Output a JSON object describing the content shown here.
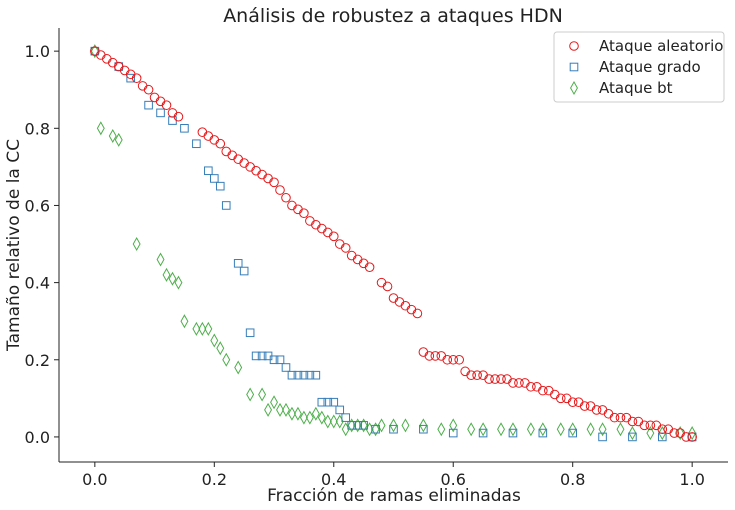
{
  "chart_data": {
    "type": "scatter",
    "title": "Análisis de robustez a ataques HDN",
    "xlabel": "Fracción de ramas eliminadas",
    "ylabel": "Tamaño relativo de la CC",
    "xlim": [
      -0.06,
      1.06
    ],
    "ylim": [
      -0.065,
      1.06
    ],
    "xticks": [
      0.0,
      0.2,
      0.4,
      0.6,
      0.8,
      1.0
    ],
    "xtick_labels": [
      "0.0",
      "0.2",
      "0.4",
      "0.6",
      "0.8",
      "1.0"
    ],
    "yticks": [
      0.0,
      0.2,
      0.4,
      0.6,
      0.8,
      1.0
    ],
    "ytick_labels": [
      "0.0",
      "0.2",
      "0.4",
      "0.6",
      "0.8",
      "1.0"
    ],
    "grid": false,
    "legend_position": "top-right",
    "series": [
      {
        "name": "Ataque aleatorio",
        "marker": "circle",
        "color": "#e41a1c",
        "points": [
          [
            0.0,
            1.0
          ],
          [
            0.01,
            0.99
          ],
          [
            0.02,
            0.98
          ],
          [
            0.03,
            0.97
          ],
          [
            0.04,
            0.96
          ],
          [
            0.05,
            0.95
          ],
          [
            0.06,
            0.94
          ],
          [
            0.07,
            0.93
          ],
          [
            0.08,
            0.91
          ],
          [
            0.09,
            0.9
          ],
          [
            0.1,
            0.88
          ],
          [
            0.11,
            0.87
          ],
          [
            0.12,
            0.86
          ],
          [
            0.13,
            0.84
          ],
          [
            0.14,
            0.83
          ],
          [
            0.18,
            0.79
          ],
          [
            0.19,
            0.78
          ],
          [
            0.2,
            0.77
          ],
          [
            0.21,
            0.76
          ],
          [
            0.22,
            0.74
          ],
          [
            0.23,
            0.73
          ],
          [
            0.24,
            0.72
          ],
          [
            0.25,
            0.71
          ],
          [
            0.26,
            0.7
          ],
          [
            0.27,
            0.69
          ],
          [
            0.28,
            0.68
          ],
          [
            0.29,
            0.67
          ],
          [
            0.3,
            0.66
          ],
          [
            0.31,
            0.64
          ],
          [
            0.32,
            0.62
          ],
          [
            0.33,
            0.6
          ],
          [
            0.34,
            0.59
          ],
          [
            0.35,
            0.58
          ],
          [
            0.36,
            0.56
          ],
          [
            0.37,
            0.55
          ],
          [
            0.38,
            0.54
          ],
          [
            0.39,
            0.53
          ],
          [
            0.4,
            0.52
          ],
          [
            0.41,
            0.5
          ],
          [
            0.42,
            0.49
          ],
          [
            0.43,
            0.47
          ],
          [
            0.44,
            0.46
          ],
          [
            0.45,
            0.45
          ],
          [
            0.46,
            0.44
          ],
          [
            0.48,
            0.4
          ],
          [
            0.49,
            0.39
          ],
          [
            0.5,
            0.36
          ],
          [
            0.51,
            0.35
          ],
          [
            0.52,
            0.34
          ],
          [
            0.53,
            0.33
          ],
          [
            0.54,
            0.32
          ],
          [
            0.55,
            0.22
          ],
          [
            0.56,
            0.21
          ],
          [
            0.57,
            0.21
          ],
          [
            0.58,
            0.21
          ],
          [
            0.59,
            0.2
          ],
          [
            0.6,
            0.2
          ],
          [
            0.61,
            0.2
          ],
          [
            0.62,
            0.17
          ],
          [
            0.63,
            0.16
          ],
          [
            0.64,
            0.16
          ],
          [
            0.65,
            0.16
          ],
          [
            0.66,
            0.15
          ],
          [
            0.67,
            0.15
          ],
          [
            0.68,
            0.15
          ],
          [
            0.69,
            0.15
          ],
          [
            0.7,
            0.14
          ],
          [
            0.71,
            0.14
          ],
          [
            0.72,
            0.14
          ],
          [
            0.73,
            0.13
          ],
          [
            0.74,
            0.13
          ],
          [
            0.75,
            0.12
          ],
          [
            0.76,
            0.12
          ],
          [
            0.77,
            0.11
          ],
          [
            0.78,
            0.1
          ],
          [
            0.79,
            0.1
          ],
          [
            0.8,
            0.09
          ],
          [
            0.81,
            0.09
          ],
          [
            0.82,
            0.08
          ],
          [
            0.83,
            0.08
          ],
          [
            0.84,
            0.07
          ],
          [
            0.85,
            0.07
          ],
          [
            0.86,
            0.06
          ],
          [
            0.87,
            0.05
          ],
          [
            0.88,
            0.05
          ],
          [
            0.89,
            0.05
          ],
          [
            0.9,
            0.04
          ],
          [
            0.91,
            0.04
          ],
          [
            0.92,
            0.03
          ],
          [
            0.93,
            0.03
          ],
          [
            0.94,
            0.03
          ],
          [
            0.95,
            0.02
          ],
          [
            0.96,
            0.02
          ],
          [
            0.97,
            0.01
          ],
          [
            0.98,
            0.01
          ],
          [
            0.99,
            0.0
          ],
          [
            1.0,
            0.0
          ]
        ]
      },
      {
        "name": "Ataque grado",
        "marker": "square",
        "color": "#377eb8",
        "points": [
          [
            0.0,
            1.0
          ],
          [
            0.04,
            0.96
          ],
          [
            0.06,
            0.93
          ],
          [
            0.09,
            0.86
          ],
          [
            0.11,
            0.84
          ],
          [
            0.13,
            0.82
          ],
          [
            0.15,
            0.8
          ],
          [
            0.17,
            0.76
          ],
          [
            0.19,
            0.69
          ],
          [
            0.2,
            0.67
          ],
          [
            0.21,
            0.65
          ],
          [
            0.22,
            0.6
          ],
          [
            0.24,
            0.45
          ],
          [
            0.25,
            0.43
          ],
          [
            0.26,
            0.27
          ],
          [
            0.27,
            0.21
          ],
          [
            0.28,
            0.21
          ],
          [
            0.29,
            0.21
          ],
          [
            0.3,
            0.2
          ],
          [
            0.31,
            0.2
          ],
          [
            0.32,
            0.18
          ],
          [
            0.33,
            0.16
          ],
          [
            0.34,
            0.16
          ],
          [
            0.35,
            0.16
          ],
          [
            0.36,
            0.16
          ],
          [
            0.37,
            0.16
          ],
          [
            0.38,
            0.09
          ],
          [
            0.39,
            0.09
          ],
          [
            0.4,
            0.09
          ],
          [
            0.41,
            0.07
          ],
          [
            0.42,
            0.05
          ],
          [
            0.43,
            0.03
          ],
          [
            0.44,
            0.03
          ],
          [
            0.45,
            0.03
          ],
          [
            0.47,
            0.02
          ],
          [
            0.5,
            0.02
          ],
          [
            0.55,
            0.02
          ],
          [
            0.6,
            0.01
          ],
          [
            0.65,
            0.01
          ],
          [
            0.7,
            0.01
          ],
          [
            0.75,
            0.01
          ],
          [
            0.8,
            0.01
          ],
          [
            0.85,
            0.0
          ],
          [
            0.9,
            0.0
          ],
          [
            0.95,
            0.0
          ],
          [
            1.0,
            0.0
          ]
        ]
      },
      {
        "name": "Ataque bt",
        "marker": "diamond",
        "color": "#4daf4a",
        "points": [
          [
            0.0,
            1.0
          ],
          [
            0.01,
            0.8
          ],
          [
            0.03,
            0.78
          ],
          [
            0.04,
            0.77
          ],
          [
            0.07,
            0.5
          ],
          [
            0.11,
            0.46
          ],
          [
            0.12,
            0.42
          ],
          [
            0.13,
            0.41
          ],
          [
            0.14,
            0.4
          ],
          [
            0.15,
            0.3
          ],
          [
            0.17,
            0.28
          ],
          [
            0.18,
            0.28
          ],
          [
            0.19,
            0.28
          ],
          [
            0.2,
            0.25
          ],
          [
            0.21,
            0.23
          ],
          [
            0.22,
            0.2
          ],
          [
            0.24,
            0.18
          ],
          [
            0.26,
            0.11
          ],
          [
            0.28,
            0.11
          ],
          [
            0.29,
            0.07
          ],
          [
            0.3,
            0.09
          ],
          [
            0.31,
            0.07
          ],
          [
            0.32,
            0.07
          ],
          [
            0.33,
            0.06
          ],
          [
            0.34,
            0.06
          ],
          [
            0.35,
            0.05
          ],
          [
            0.36,
            0.05
          ],
          [
            0.37,
            0.06
          ],
          [
            0.38,
            0.05
          ],
          [
            0.39,
            0.04
          ],
          [
            0.4,
            0.04
          ],
          [
            0.41,
            0.04
          ],
          [
            0.42,
            0.02
          ],
          [
            0.43,
            0.03
          ],
          [
            0.44,
            0.03
          ],
          [
            0.45,
            0.03
          ],
          [
            0.46,
            0.02
          ],
          [
            0.47,
            0.02
          ],
          [
            0.48,
            0.03
          ],
          [
            0.5,
            0.03
          ],
          [
            0.52,
            0.03
          ],
          [
            0.55,
            0.03
          ],
          [
            0.58,
            0.02
          ],
          [
            0.6,
            0.03
          ],
          [
            0.63,
            0.02
          ],
          [
            0.65,
            0.02
          ],
          [
            0.68,
            0.02
          ],
          [
            0.7,
            0.02
          ],
          [
            0.73,
            0.02
          ],
          [
            0.75,
            0.02
          ],
          [
            0.78,
            0.02
          ],
          [
            0.8,
            0.02
          ],
          [
            0.83,
            0.02
          ],
          [
            0.85,
            0.02
          ],
          [
            0.88,
            0.02
          ],
          [
            0.9,
            0.01
          ],
          [
            0.93,
            0.01
          ],
          [
            0.95,
            0.01
          ],
          [
            0.98,
            0.01
          ],
          [
            1.0,
            0.01
          ]
        ]
      }
    ]
  }
}
